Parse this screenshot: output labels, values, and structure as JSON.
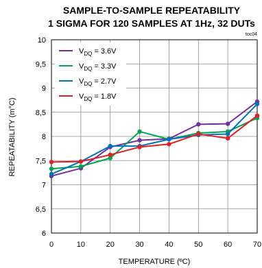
{
  "chart_data": {
    "type": "line",
    "title_line1": "SAMPLE-TO-SAMPLE REPEATABILITY",
    "title_line2": "1 SIGMA FOR 120 SAMPLES AT 1Hz, 32 DUTs",
    "figure_code": "toc04",
    "xlabel": "TEMPERATURE (ºC)",
    "ylabel": "REPEATABILITY (m°C)",
    "xlim": [
      0,
      70
    ],
    "ylim": [
      6,
      10
    ],
    "x_ticks": [
      "0",
      "10",
      "20",
      "30",
      "40",
      "50",
      "60",
      "70"
    ],
    "y_ticks": [
      "6",
      "6,5",
      "7",
      "7,5",
      "8",
      "8,5",
      "9",
      "9,5",
      "10"
    ],
    "grid": true,
    "legend_position": "top-left",
    "x": [
      0,
      10,
      20,
      30,
      40,
      50,
      60,
      70
    ],
    "series": [
      {
        "name_main": "V",
        "name_sub": "DQ",
        "name_rest": " = 3.6V",
        "color": "#7030a0",
        "values": [
          7.18,
          7.34,
          7.78,
          7.92,
          7.95,
          8.25,
          8.26,
          8.72
        ]
      },
      {
        "name_main": "V",
        "name_sub": "DQ",
        "name_rest": " = 3.3V",
        "color": "#00a550",
        "values": [
          7.33,
          7.38,
          7.55,
          8.1,
          7.94,
          8.07,
          8.1,
          8.38
        ]
      },
      {
        "name_main": "V",
        "name_sub": "DQ",
        "name_rest": " = 2.7V",
        "color": "#0070c0",
        "values": [
          7.22,
          7.48,
          7.8,
          7.8,
          7.94,
          8.03,
          8.05,
          8.67
        ]
      },
      {
        "name_main": "V",
        "name_sub": "DQ",
        "name_rest": " = 1.8V",
        "color": "#e31e24",
        "values": [
          7.47,
          7.48,
          7.62,
          7.78,
          7.84,
          8.05,
          7.96,
          8.43
        ]
      }
    ]
  }
}
